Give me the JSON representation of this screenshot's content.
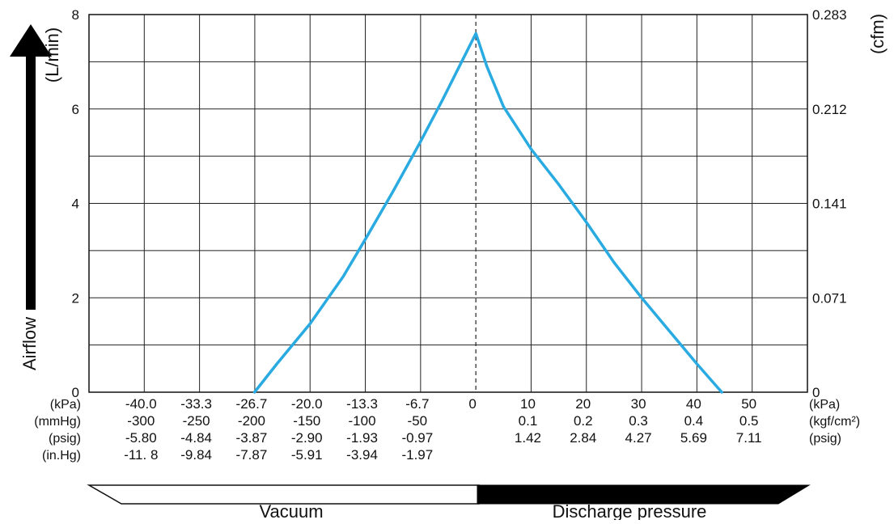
{
  "chart_data": {
    "type": "line",
    "grid": true,
    "x_vacuum_kpa": [
      -40.0,
      -33.3,
      -26.7,
      -20.0,
      -13.3,
      -6.7
    ],
    "x_discharge_kpa": [
      0,
      10,
      20,
      30,
      40,
      50
    ],
    "xlim_kpa": [
      -40.0,
      50
    ],
    "ylim": [
      0,
      8
    ],
    "y_ticks": [
      "0",
      "2",
      "4",
      "6",
      "8"
    ],
    "y2_ticks": [
      "0",
      "0.071",
      "0.141",
      "0.212",
      "0.283"
    ],
    "ylabel": "Airflow",
    "y_unit": "(L/min)",
    "y2_unit": "(cfm)",
    "series": [
      {
        "color": "#29abe2",
        "x": [
          -26.7,
          -24,
          -20,
          -16,
          -13.3,
          -10,
          -6.7,
          -4,
          -2,
          0,
          2,
          5,
          10,
          15,
          20,
          25,
          30,
          35,
          40,
          44.5
        ],
        "y": [
          0,
          0.6,
          1.45,
          2.45,
          3.25,
          4.25,
          5.3,
          6.2,
          6.9,
          7.6,
          6.9,
          6.05,
          5.15,
          4.4,
          3.6,
          2.75,
          2.0,
          1.3,
          0.6,
          0
        ]
      }
    ],
    "left_rows": [
      {
        "unit": "(kPa)",
        "values": [
          "-40.0",
          "-33.3",
          "-26.7",
          "-20.0",
          "-13.3",
          "-6.7",
          "0",
          "10",
          "20",
          "30",
          "40",
          "50"
        ]
      },
      {
        "unit": "(mmHg)",
        "values": [
          "-300",
          "-250",
          "-200",
          "-150",
          "-100",
          "-50",
          "",
          "0.1",
          "0.2",
          "0.3",
          "0.4",
          "0.5"
        ]
      },
      {
        "unit": "(psig)",
        "values": [
          "-5.80",
          "-4.84",
          "-3.87",
          "-2.90",
          "-1.93",
          "-0.97",
          "",
          "1.42",
          "2.84",
          "4.27",
          "5.69",
          "7.11"
        ]
      },
      {
        "unit": "(in.Hg)",
        "values": [
          "-11. 8",
          "-9.84",
          "-7.87",
          "-5.91",
          "-3.94",
          "-1.97"
        ]
      }
    ],
    "right_units": [
      "(kPa)",
      "(kgf/cm²)",
      "(psig)"
    ],
    "footer": {
      "vacuum": "Vacuum",
      "discharge": "Discharge pressure"
    }
  }
}
